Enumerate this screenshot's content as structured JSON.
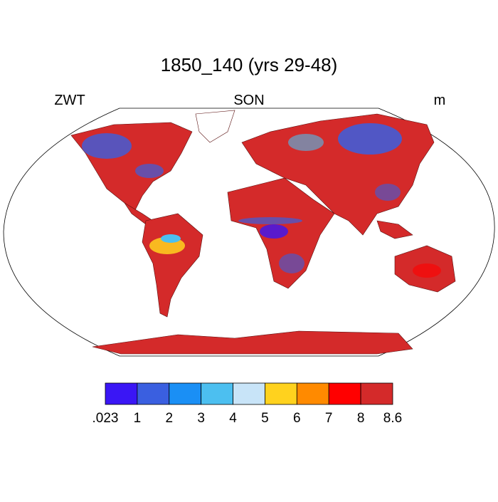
{
  "title": "1850_140 (yrs 29-48)",
  "left_string": "ZWT",
  "center_string": "SON",
  "right_string": "m",
  "colorbar": {
    "colors": [
      "#3a16f5",
      "#3a5fe0",
      "#1a8ff5",
      "#4cbff0",
      "#c8e4f8",
      "#ffd21e",
      "#ff8a00",
      "#ff0000",
      "#d42a2a"
    ],
    "labels": [
      ".023",
      "1",
      "2",
      "3",
      "4",
      "5",
      "6",
      "7",
      "8",
      "8.6"
    ]
  }
}
